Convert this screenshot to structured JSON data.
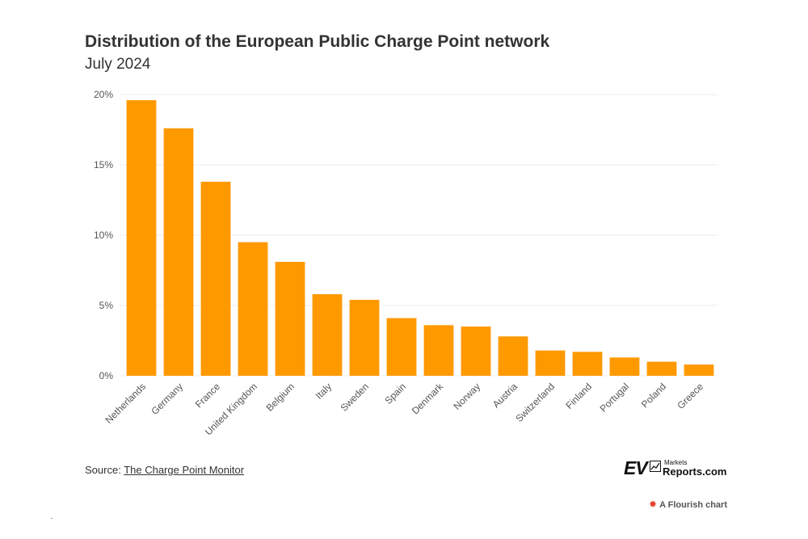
{
  "header": {
    "title": "Distribution of the European Public Charge Point network",
    "subtitle": "July 2024"
  },
  "chart_data": {
    "type": "bar",
    "categories": [
      "Netherlands",
      "Germany",
      "France",
      "United Kingdom",
      "Belgium",
      "Italy",
      "Sweden",
      "Spain",
      "Denmark",
      "Norway",
      "Austria",
      "Switzerland",
      "Finland",
      "Portugal",
      "Poland",
      "Greece"
    ],
    "values": [
      19.6,
      17.6,
      13.8,
      9.5,
      8.1,
      5.8,
      5.4,
      4.1,
      3.6,
      3.5,
      2.8,
      1.8,
      1.7,
      1.3,
      1.0,
      0.8
    ],
    "yticks": [
      0,
      5,
      10,
      15,
      20
    ],
    "ytick_labels": [
      "0%",
      "5%",
      "10%",
      "15%",
      "20%"
    ],
    "ylim": [
      0,
      20
    ],
    "title": "Distribution of the European Public Charge Point network",
    "xlabel": "",
    "ylabel": "",
    "bar_color": "#ff9900",
    "grid": true
  },
  "footer": {
    "source_prefix": "Source: ",
    "source_link": "The Charge Point Monitor",
    "logo_ev": "EV",
    "logo_markets": "Markets",
    "logo_reports": "Reports.com",
    "flourish_label": "A Flourish chart"
  },
  "colors": {
    "bar": "#ff9900",
    "grid": "#eeeeee",
    "text": "#333333",
    "flourish_star": "#e8412c"
  }
}
